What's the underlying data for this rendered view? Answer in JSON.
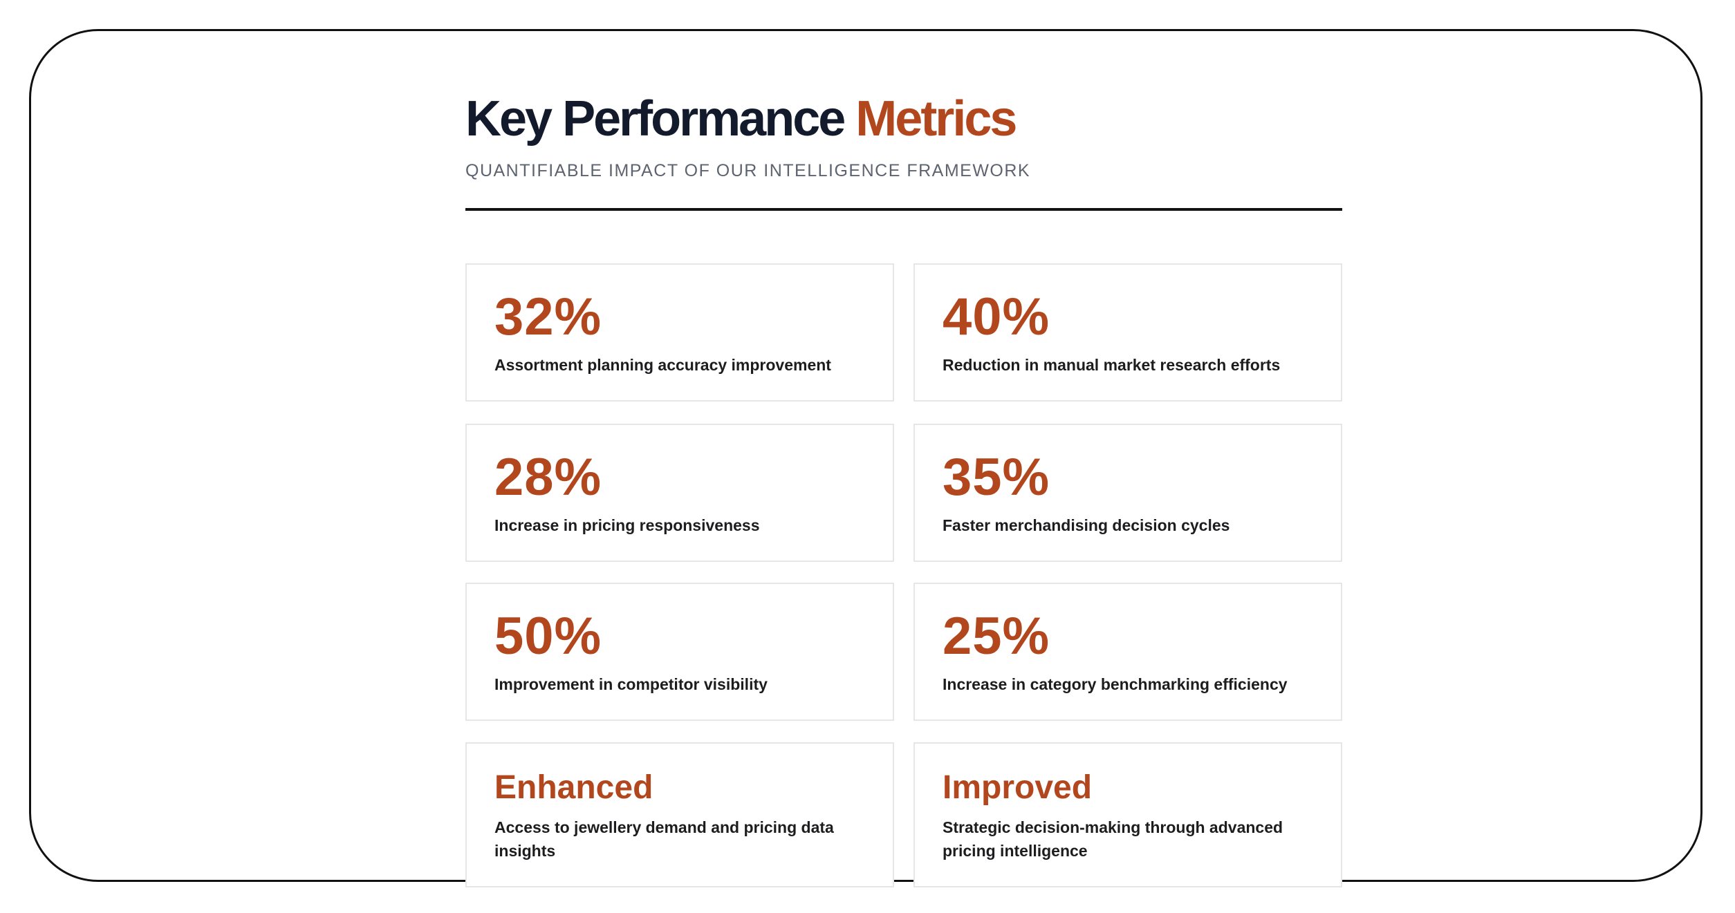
{
  "header": {
    "title_main": "Key Performance",
    "title_accent": "Metrics",
    "subtitle": "QUANTIFIABLE IMPACT OF OUR INTELLIGENCE FRAMEWORK"
  },
  "colors": {
    "accent": "#b2461d",
    "title": "#131a2b",
    "subtitle": "#5d6470",
    "card_border": "#e6e6e6",
    "frame_border": "#111111"
  },
  "metrics": [
    {
      "value": "32%",
      "label": "Assortment planning accuracy improvement"
    },
    {
      "value": "40%",
      "label": "Reduction in manual market research efforts"
    },
    {
      "value": "28%",
      "label": "Increase in pricing responsiveness"
    },
    {
      "value": "35%",
      "label": "Faster merchandising decision cycles"
    },
    {
      "value": "50%",
      "label": "Improvement in competitor visibility"
    },
    {
      "value": "25%",
      "label": "Increase in category benchmarking efficiency"
    },
    {
      "value": "Enhanced",
      "label": "Access to jewellery demand and pricing data insights"
    },
    {
      "value": "Improved",
      "label": "Strategic decision-making through advanced pricing intelligence"
    }
  ]
}
